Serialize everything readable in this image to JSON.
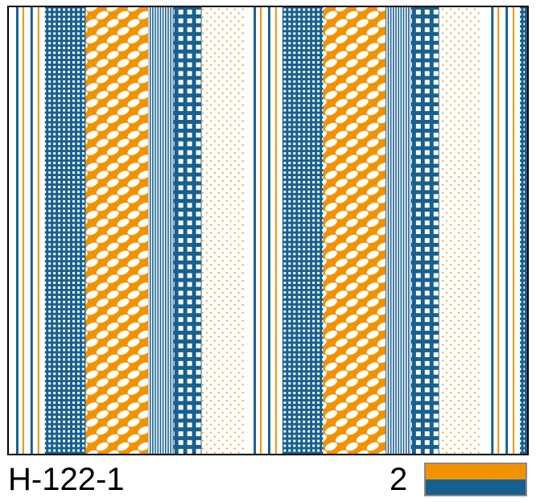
{
  "design_code": "H-122-1",
  "color_count": "2",
  "colors": {
    "orange": "#F39200",
    "blue": "#17608F",
    "background": "#FFFFFF"
  },
  "pattern_bands": [
    "thin-stripes",
    "blue-grid",
    "orange-ellipses",
    "fine-stripes",
    "blue-gingham",
    "orange-dots"
  ]
}
